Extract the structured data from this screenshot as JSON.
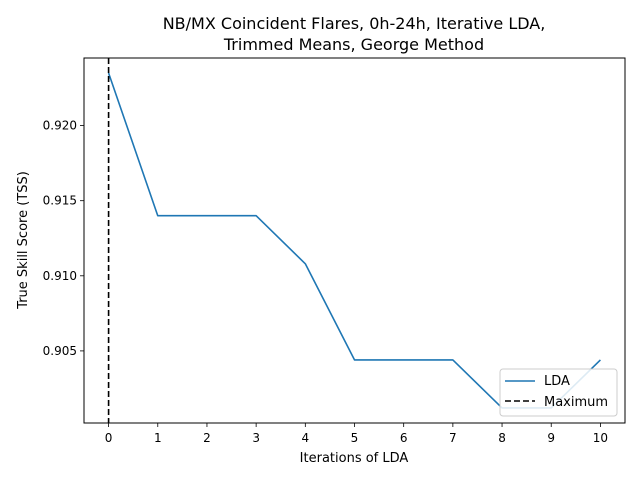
{
  "chart_data": {
    "type": "line",
    "title_line1": "NB/MX Coincident Flares, 0h-24h, Iterative LDA,",
    "title_line2": "Trimmed Means, George Method",
    "xlabel": "Iterations of LDA",
    "ylabel": "True Skill Score (TSS)",
    "x": [
      0,
      1,
      2,
      3,
      4,
      5,
      6,
      7,
      8,
      9,
      10
    ],
    "series": [
      {
        "name": "LDA",
        "color": "#1f77b4",
        "values": [
          0.9235,
          0.914,
          0.914,
          0.914,
          0.9108,
          0.9044,
          0.9044,
          0.9044,
          0.9012,
          0.9012,
          0.9044
        ]
      }
    ],
    "vline": {
      "name": "Maximum",
      "x": 0,
      "color": "#000000",
      "style": "dashed"
    },
    "xlim": [
      -0.5,
      10.5
    ],
    "ylim": [
      0.9002,
      0.9245
    ],
    "xticks": [
      0,
      1,
      2,
      3,
      4,
      5,
      6,
      7,
      8,
      9,
      10
    ],
    "yticks": [
      0.905,
      0.91,
      0.915,
      0.92
    ],
    "ytick_labels": [
      "0.905",
      "0.910",
      "0.915",
      "0.920"
    ],
    "legend_position": "lower-right",
    "grid": false
  }
}
